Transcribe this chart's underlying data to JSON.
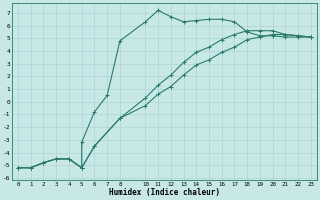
{
  "xlabel": "Humidex (Indice chaleur)",
  "bg_color": "#c8e8e8",
  "grid_color": "#afd4d4",
  "line_color": "#2a7a6a",
  "xlim": [
    -0.5,
    23.5
  ],
  "ylim": [
    -6.2,
    7.8
  ],
  "xticks": [
    0,
    1,
    2,
    3,
    4,
    5,
    6,
    7,
    8,
    10,
    11,
    12,
    13,
    14,
    15,
    16,
    17,
    18,
    19,
    20,
    21,
    22,
    23
  ],
  "yticks": [
    7,
    6,
    5,
    4,
    3,
    2,
    1,
    0,
    -1,
    -2,
    -3,
    -4,
    -5,
    -6
  ],
  "line1_x": [
    0,
    1,
    2,
    3,
    4,
    5,
    5,
    6,
    7,
    8,
    10,
    11,
    12,
    13,
    14,
    15,
    16,
    17,
    18,
    19,
    20,
    21,
    22,
    23
  ],
  "line1_y": [
    -5.2,
    -5.2,
    -4.8,
    -4.5,
    -4.5,
    -5.2,
    -3.2,
    -0.8,
    0.5,
    4.8,
    6.3,
    7.2,
    6.7,
    6.3,
    6.4,
    6.5,
    6.5,
    6.3,
    5.5,
    5.2,
    5.2,
    5.1,
    5.1,
    5.1
  ],
  "line2_x": [
    0,
    1,
    2,
    3,
    4,
    5,
    6,
    8,
    10,
    11,
    12,
    13,
    14,
    15,
    16,
    17,
    18,
    19,
    20,
    21,
    22,
    23
  ],
  "line2_y": [
    -5.2,
    -5.2,
    -4.8,
    -4.5,
    -4.5,
    -5.2,
    -3.5,
    -1.3,
    -0.3,
    0.6,
    1.2,
    2.1,
    2.9,
    3.3,
    3.9,
    4.3,
    4.9,
    5.1,
    5.3,
    5.3,
    5.2,
    5.1
  ],
  "line3_x": [
    0,
    1,
    2,
    3,
    4,
    5,
    6,
    8,
    10,
    11,
    12,
    13,
    14,
    15,
    16,
    17,
    18,
    19,
    20,
    21,
    22,
    23
  ],
  "line3_y": [
    -5.2,
    -5.2,
    -4.8,
    -4.5,
    -4.5,
    -5.2,
    -3.5,
    -1.3,
    0.3,
    1.3,
    2.1,
    3.1,
    3.9,
    4.3,
    4.9,
    5.3,
    5.6,
    5.6,
    5.6,
    5.3,
    5.2,
    5.1
  ]
}
